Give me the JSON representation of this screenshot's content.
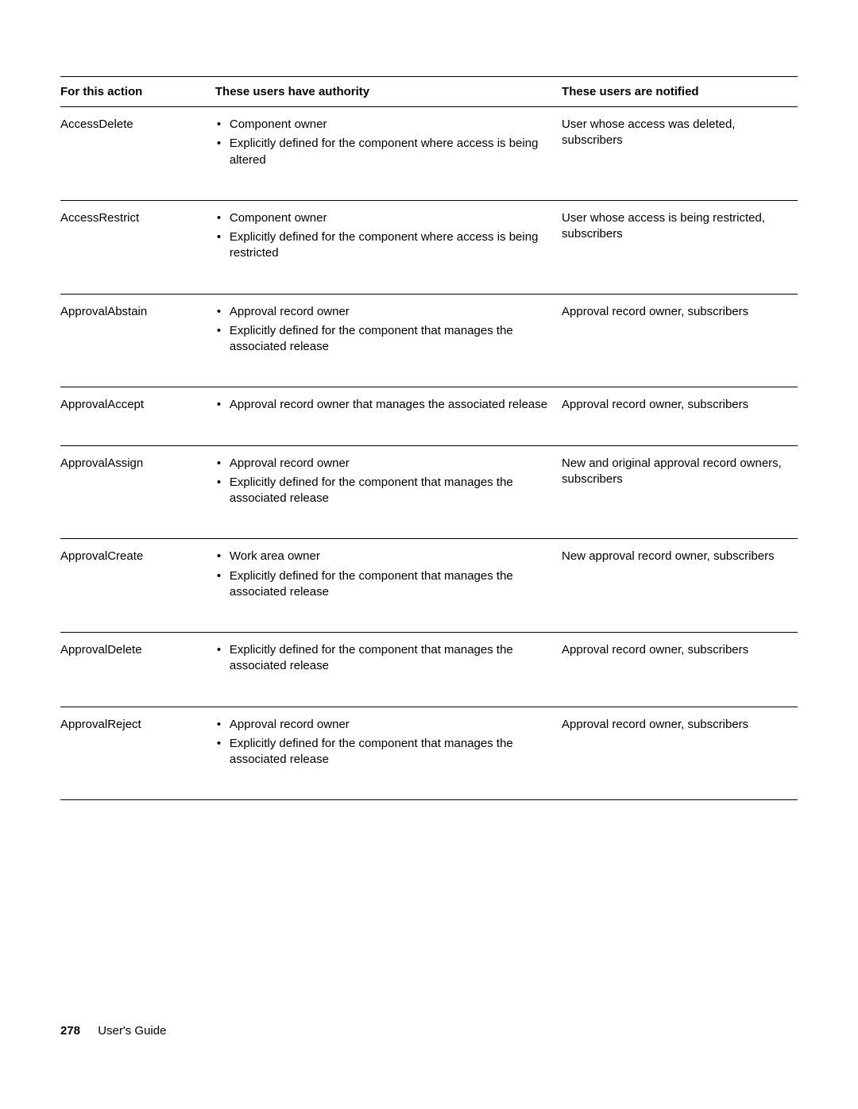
{
  "table": {
    "headers": {
      "col1": "For this action",
      "col2": "These users have authority",
      "col3": "These users are notified"
    },
    "rows": [
      {
        "action": "AccessDelete",
        "authority": [
          "Component owner",
          "Explicitly defined for the component where access is being altered"
        ],
        "notified": "User whose access was deleted, subscribers"
      },
      {
        "action": "AccessRestrict",
        "authority": [
          "Component owner",
          "Explicitly defined for the component where access is being restricted"
        ],
        "notified": "User whose access is being restricted, subscribers"
      },
      {
        "action": "ApprovalAbstain",
        "authority": [
          "Approval record owner",
          "Explicitly defined for the component that manages the associated release"
        ],
        "notified": "Approval record owner, subscribers"
      },
      {
        "action": "ApprovalAccept",
        "authority": [
          "Approval record owner that manages the associated release"
        ],
        "notified": "Approval record owner, subscribers"
      },
      {
        "action": "ApprovalAssign",
        "authority": [
          "Approval record owner",
          "Explicitly defined for the component that manages the associated release"
        ],
        "notified": "New and original approval record owners, subscribers"
      },
      {
        "action": "ApprovalCreate",
        "authority": [
          "Work area owner",
          "Explicitly defined for the component that manages the associated release"
        ],
        "notified": "New approval record owner, subscribers"
      },
      {
        "action": "ApprovalDelete",
        "authority": [
          "Explicitly defined for the component that manages the associated release"
        ],
        "notified": "Approval record owner, subscribers"
      },
      {
        "action": "ApprovalReject",
        "authority": [
          "Approval record owner",
          "Explicitly defined for the component that manages the associated release"
        ],
        "notified": "Approval record owner, subscribers"
      }
    ]
  },
  "footer": {
    "page_number": "278",
    "doc_title": "User's Guide"
  }
}
